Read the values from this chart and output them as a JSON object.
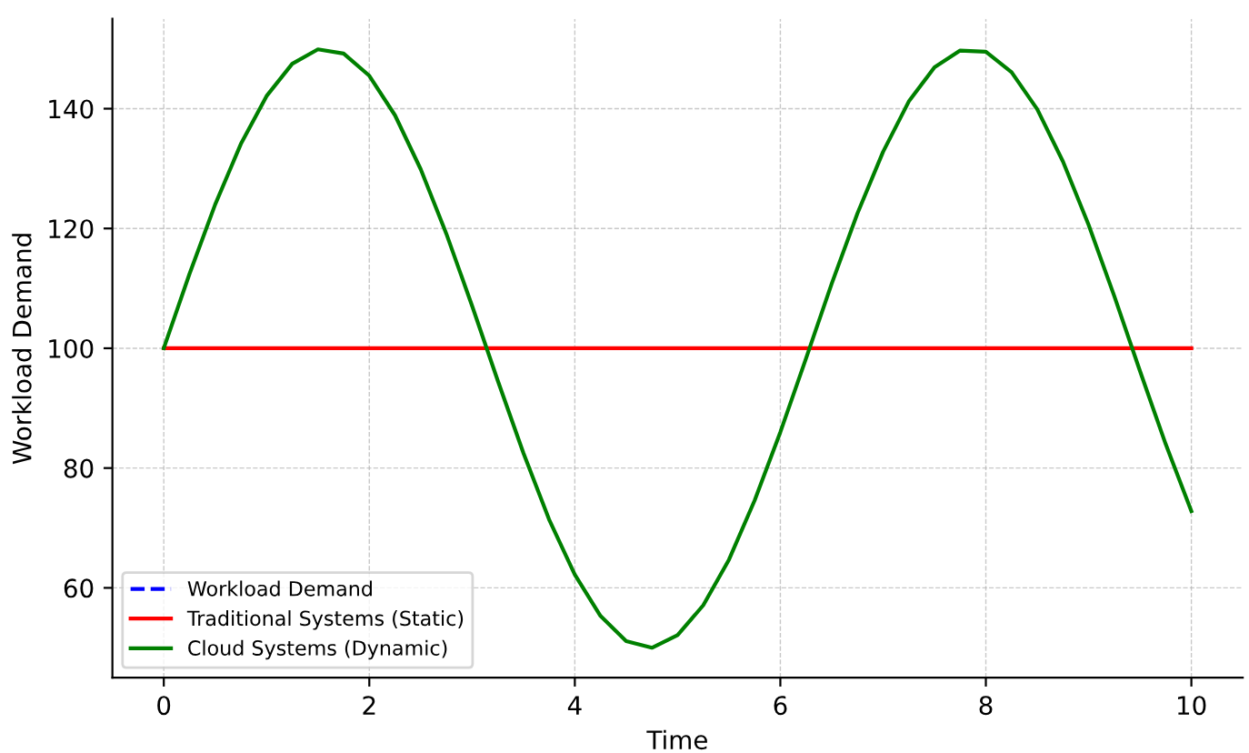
{
  "chart_data": {
    "type": "line",
    "xlabel": "Time",
    "ylabel": "Workload Demand",
    "x": [
      0,
      0.25,
      0.5,
      0.75,
      1,
      1.25,
      1.5,
      1.75,
      2,
      2.25,
      2.5,
      2.75,
      3,
      3.25,
      3.5,
      3.75,
      4,
      4.25,
      4.5,
      4.75,
      5,
      5.25,
      5.5,
      5.75,
      6,
      6.25,
      6.5,
      6.75,
      7,
      7.25,
      7.5,
      7.75,
      8,
      8.25,
      8.5,
      8.75,
      9,
      9.25,
      9.5,
      9.75,
      10
    ],
    "series": [
      {
        "name": "Workload Demand",
        "color": "#0000ff",
        "line_style": "dashed",
        "values": [
          null,
          null,
          null,
          null,
          null,
          null,
          null,
          null,
          null,
          null,
          null,
          null,
          null,
          null,
          null,
          null,
          null,
          null,
          null,
          null,
          null,
          null,
          null,
          null,
          null,
          null,
          null,
          null,
          null,
          null,
          null,
          null,
          null,
          null,
          null,
          null,
          null,
          null,
          null,
          null,
          null
        ]
      },
      {
        "name": "Traditional Systems (Static)",
        "color": "#ff0000",
        "line_style": "solid",
        "values": [
          100,
          100,
          100,
          100,
          100,
          100,
          100,
          100,
          100,
          100,
          100,
          100,
          100,
          100,
          100,
          100,
          100,
          100,
          100,
          100,
          100,
          100,
          100,
          100,
          100,
          100,
          100,
          100,
          100,
          100,
          100,
          100,
          100,
          100,
          100,
          100,
          100,
          100,
          100,
          100,
          100
        ]
      },
      {
        "name": "Cloud Systems (Dynamic)",
        "color": "#008000",
        "line_style": "solid",
        "values": [
          100,
          112.4,
          124.0,
          134.1,
          142.1,
          147.5,
          149.9,
          149.2,
          145.5,
          138.9,
          129.9,
          119.1,
          107.1,
          94.6,
          82.5,
          71.4,
          62.2,
          55.3,
          51.1,
          50.0,
          52.1,
          57.1,
          64.7,
          74.6,
          86.0,
          98.3,
          110.8,
          122.5,
          132.8,
          141.2,
          146.9,
          149.7,
          149.5,
          146.1,
          139.9,
          131.2,
          120.6,
          108.7,
          96.2,
          84.0,
          72.8
        ]
      }
    ],
    "xlim": [
      -0.5,
      10.5
    ],
    "ylim": [
      45,
      155
    ],
    "xticks": [
      0,
      2,
      4,
      6,
      8,
      10
    ],
    "yticks": [
      60,
      80,
      100,
      120,
      140
    ],
    "grid": true,
    "legend": "bottom left"
  }
}
